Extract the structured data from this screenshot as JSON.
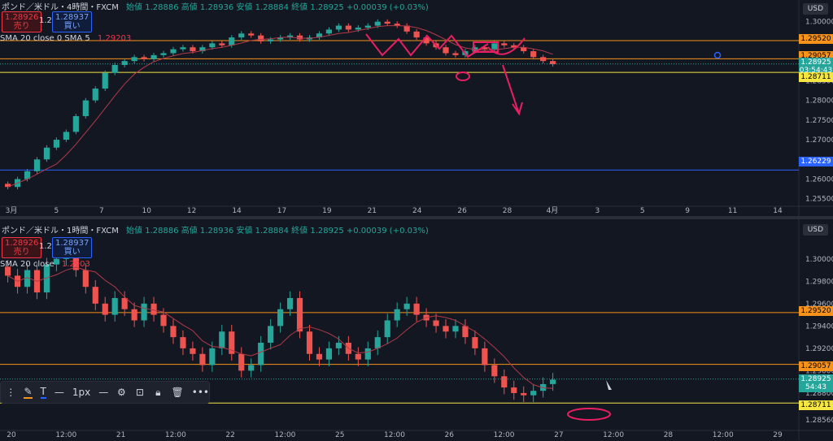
{
  "top": {
    "header": {
      "title": "ポンド／米ドル・4時間・FXCM",
      "ohlc": "始値 1.28886 高値 1.28936 安値 1.28884 終値 1.28925 +0.00039 (+0.03%)"
    },
    "sell_price": "1.28926",
    "sell_label": "売り",
    "spread": "1.2",
    "buy_price": "1.28937",
    "buy_label": "買い",
    "indicator": "SMA 20 close 0 SMA 5",
    "indicator_value": "1.29203",
    "currency": "USD",
    "yticks": [
      "1.30000",
      "1.29500",
      "1.29000",
      "1.28500",
      "1.28000",
      "1.27500",
      "1.27000",
      "1.26500",
      "1.26000",
      "1.25500"
    ],
    "xticks": [
      "3月",
      "5",
      "7",
      "10",
      "12",
      "14",
      "17",
      "19",
      "21",
      "24",
      "26",
      "28",
      "4月",
      "3",
      "5",
      "9",
      "11",
      "14"
    ],
    "levels": [
      {
        "label": "1.29520",
        "color": "#f7931a",
        "y": 1.2952
      },
      {
        "label": "1.29057",
        "color": "#f7931a",
        "y": 1.29057
      },
      {
        "label": "1.28711",
        "color": "#f5e642",
        "y": 1.28711
      },
      {
        "label": "1.26229",
        "color": "#2962ff",
        "y": 1.26229
      }
    ],
    "current_price": "1.28925",
    "countdown": "03:54:43"
  },
  "bottom": {
    "header": {
      "title": "ポンド／米ドル・1時間・FXCM",
      "ohlc": "始値 1.28886 高値 1.28936 安値 1.28884 終値 1.28925 +0.00039 (+0.03%)"
    },
    "sell_price": "1.28926",
    "sell_label": "売り",
    "spread": "1.2",
    "buy_price": "1.28937",
    "buy_label": "買い",
    "indicator": "SMA 20 close",
    "indicator_value": "1.2903",
    "currency": "USD",
    "yticks": [
      "1.30000",
      "1.29800",
      "1.29600",
      "1.29400",
      "1.29200",
      "1.29000",
      "1.28800",
      "1.28560"
    ],
    "xticks": [
      "20",
      "12:00",
      "21",
      "12:00",
      "22",
      "12:00",
      "25",
      "12:00",
      "26",
      "12:00",
      "27",
      "12:00",
      "28",
      "12:00",
      "29"
    ],
    "levels": [
      {
        "label": "1.29520",
        "color": "#f7931a",
        "y": 1.2952
      },
      {
        "label": "1.29057",
        "color": "#f7931a",
        "y": 1.29057
      },
      {
        "label": "1.28711",
        "color": "#f5e642",
        "y": 1.28711
      }
    ],
    "current_price": "1.28925",
    "countdown": "54:43"
  },
  "toolbar": {
    "width_label": "1px",
    "text_icon": "T",
    "more_icon": "•••"
  },
  "chart_data": [
    {
      "type": "candlestick",
      "title": "ポンド／米ドル・4時間・FXCM",
      "ylim": [
        1.2535,
        1.3018
      ],
      "ylabel": "USD",
      "close": [
        1.258,
        1.26,
        1.262,
        1.265,
        1.268,
        1.27,
        1.272,
        1.276,
        1.28,
        1.283,
        1.287,
        1.289,
        1.29,
        1.291,
        1.2905,
        1.2915,
        1.292,
        1.293,
        1.2935,
        1.2925,
        1.2935,
        1.2945,
        1.294,
        1.296,
        1.297,
        1.2965,
        1.295,
        1.2955,
        1.296,
        1.2965,
        1.2955,
        1.296,
        1.297,
        1.298,
        1.299,
        1.298,
        1.2985,
        1.299,
        1.3,
        1.2995,
        1.299,
        1.2975,
        1.296,
        1.2945,
        1.2935,
        1.292,
        1.2915,
        1.2925,
        1.2935,
        1.293,
        1.2945,
        1.294,
        1.2935,
        1.2925,
        1.291,
        1.29,
        1.2892
      ]
    },
    {
      "type": "candlestick",
      "title": "ポンド／米ドル・1時間・FXCM",
      "ylim": [
        1.2848,
        1.3018
      ],
      "ylabel": "USD",
      "close": [
        1.2985,
        1.2975,
        1.299,
        1.297,
        1.2995,
        1.3,
        1.301,
        1.299,
        1.2975,
        1.296,
        1.295,
        1.2965,
        1.2955,
        1.2945,
        1.296,
        1.295,
        1.294,
        1.293,
        1.292,
        1.2915,
        1.2905,
        1.292,
        1.2935,
        1.2915,
        1.29,
        1.2905,
        1.2925,
        1.294,
        1.2955,
        1.2965,
        1.2935,
        1.2915,
        1.291,
        1.292,
        1.2925,
        1.2915,
        1.291,
        1.292,
        1.293,
        1.2945,
        1.2955,
        1.296,
        1.295,
        1.2945,
        1.294,
        1.2935,
        1.294,
        1.293,
        1.292,
        1.2905,
        1.2895,
        1.2885,
        1.288,
        1.2878,
        1.2882,
        1.2888,
        1.2892
      ]
    }
  ]
}
